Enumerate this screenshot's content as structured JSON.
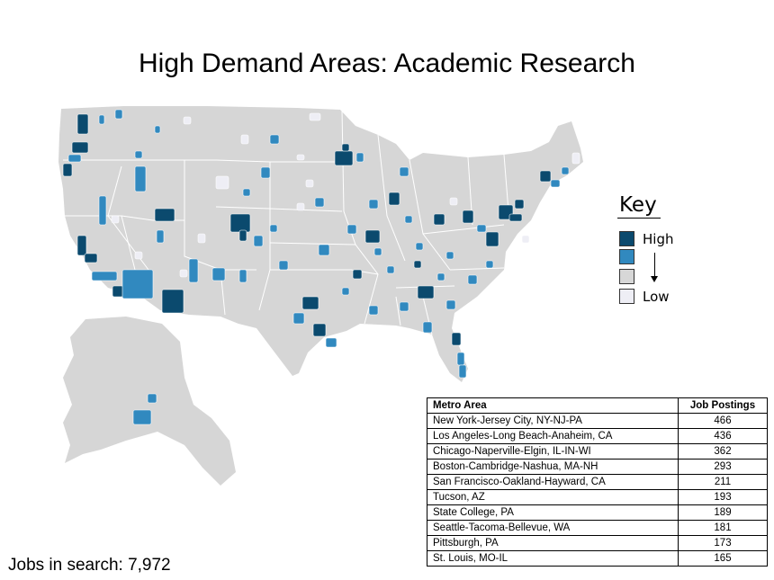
{
  "title": "High Demand Areas: Academic Research",
  "colors": {
    "high": "#0b4a6e",
    "medium": "#3189bf",
    "low_mid": "#d7d7d7",
    "low": "#eeeef5",
    "base": "#d6d6d6"
  },
  "key": {
    "title": "Key",
    "high_label": "High",
    "low_label": "Low",
    "levels": [
      "high",
      "medium",
      "low_mid",
      "low"
    ]
  },
  "table": {
    "headers": [
      "Metro Area",
      "Job Postings"
    ],
    "rows": [
      {
        "metro": "New York-Jersey City, NY-NJ-PA",
        "postings": "466"
      },
      {
        "metro": "Los Angeles-Long Beach-Anaheim, CA",
        "postings": "436"
      },
      {
        "metro": "Chicago-Naperville-Elgin, IL-IN-WI",
        "postings": "362"
      },
      {
        "metro": "Boston-Cambridge-Nashua, MA-NH",
        "postings": "293"
      },
      {
        "metro": "San Francisco-Oakland-Hayward, CA",
        "postings": "211"
      },
      {
        "metro": "Tucson, AZ",
        "postings": "193"
      },
      {
        "metro": "State College, PA",
        "postings": "189"
      },
      {
        "metro": "Seattle-Tacoma-Bellevue, WA",
        "postings": "181"
      },
      {
        "metro": "Pittsburgh, PA",
        "postings": "173"
      },
      {
        "metro": "St. Louis, MO-IL",
        "postings": "165"
      }
    ]
  },
  "jobs_in_search": "Jobs in search: 7,972"
}
